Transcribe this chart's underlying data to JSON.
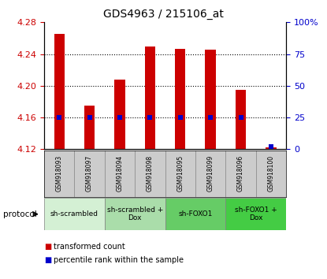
{
  "title": "GDS4963 / 215106_at",
  "samples": [
    "GSM918093",
    "GSM918097",
    "GSM918094",
    "GSM918098",
    "GSM918095",
    "GSM918099",
    "GSM918096",
    "GSM918100"
  ],
  "transformed_counts": [
    4.265,
    4.175,
    4.208,
    4.25,
    4.247,
    4.246,
    4.195,
    4.122
  ],
  "percentile_ranks": [
    25,
    25,
    25,
    25,
    25,
    25,
    25,
    2
  ],
  "ylim_left": [
    4.12,
    4.28
  ],
  "ylim_right": [
    0,
    100
  ],
  "yticks_left": [
    4.12,
    4.16,
    4.2,
    4.24,
    4.28
  ],
  "yticks_right": [
    0,
    25,
    50,
    75,
    100
  ],
  "ytick_labels_right": [
    "0",
    "25",
    "50",
    "75",
    "100%"
  ],
  "bar_bottom": 4.12,
  "bar_color": "#cc0000",
  "dot_color": "#0000cc",
  "protocols": [
    {
      "label": "sh-scrambled",
      "spans": [
        0,
        2
      ],
      "color": "#d4f0d4"
    },
    {
      "label": "sh-scrambled +\nDox",
      "spans": [
        2,
        4
      ],
      "color": "#aaddaa"
    },
    {
      "label": "sh-FOXO1",
      "spans": [
        4,
        6
      ],
      "color": "#66cc66"
    },
    {
      "label": "sh-FOXO1 +\nDox",
      "spans": [
        6,
        8
      ],
      "color": "#44cc44"
    }
  ],
  "legend_red_label": "transformed count",
  "legend_blue_label": "percentile rank within the sample",
  "protocol_label": "protocol",
  "bar_width": 0.35,
  "grid_color": "#000000",
  "axis_bg": "#ffffff",
  "sample_area_bg": "#cccccc",
  "left_axis_color": "#cc0000",
  "right_axis_color": "#0000cc"
}
